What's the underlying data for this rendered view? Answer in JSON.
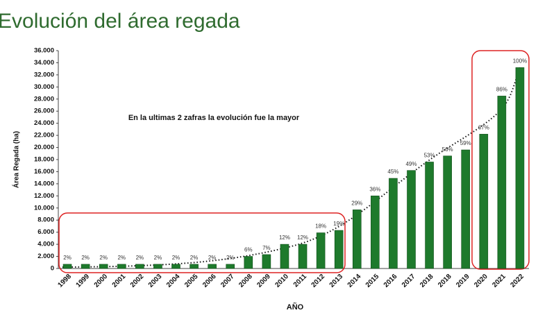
{
  "chart_data": {
    "type": "bar",
    "title": "Evolución del área regada",
    "annotation": "En la ultimas 2 zafras  la evolución fue la mayor",
    "x_label": "AÑO",
    "y_label": "Área Regada (ha)",
    "categories": [
      "1998",
      "1999",
      "2000",
      "2001",
      "2002",
      "2003",
      "2004",
      "2005",
      "2006",
      "2007",
      "2008",
      "2009",
      "2010",
      "2011",
      "2012",
      "2013",
      "2014",
      "2015",
      "2016",
      "2017",
      "2018",
      "2018",
      "2019",
      "2020",
      "2021",
      "2022"
    ],
    "values": [
      700,
      700,
      700,
      700,
      700,
      700,
      700,
      700,
      700,
      700,
      2000,
      2300,
      4000,
      4000,
      5900,
      6300,
      9700,
      12000,
      14900,
      16200,
      17600,
      18600,
      19600,
      22200,
      28500,
      33200
    ],
    "percent_labels": [
      "2%",
      "2%",
      "2%",
      "2%",
      "2%",
      "2%",
      "2%",
      "2%",
      "2%",
      "2%",
      "6%",
      "7%",
      "12%",
      "12%",
      "18%",
      "19%",
      "29%",
      "36%",
      "45%",
      "49%",
      "53%",
      "56%",
      "59%",
      "67%",
      "86%",
      "100%"
    ],
    "color": "#1e7a2c",
    "ylim": [
      0,
      36000
    ],
    "yticks": [
      0,
      {
        "value": 2000,
        "label": "2.000"
      },
      {
        "value": 4000,
        "label": "4.000"
      },
      {
        "value": 6000,
        "label": "6.000"
      },
      {
        "value": 8000,
        "label": "8.000"
      },
      {
        "value": 10000,
        "label": "10.000"
      },
      {
        "value": 12000,
        "label": "12.000"
      },
      {
        "value": 14000,
        "label": "14.000"
      },
      {
        "value": 16000,
        "label": "16.000"
      },
      {
        "value": 18000,
        "label": "18.000"
      },
      {
        "value": 20000,
        "label": "20.000"
      },
      {
        "value": 22000,
        "label": "22.000"
      },
      {
        "value": 24000,
        "label": "24.000"
      },
      {
        "value": 26000,
        "label": "26.000"
      },
      {
        "value": 28000,
        "label": "28.000"
      },
      {
        "value": 30000,
        "label": "30.000"
      },
      {
        "value": 32000,
        "label": "32.000"
      },
      {
        "value": 34000,
        "label": "34.000"
      },
      {
        "value": 36000,
        "label": "36.000"
      }
    ],
    "grid": false
  }
}
